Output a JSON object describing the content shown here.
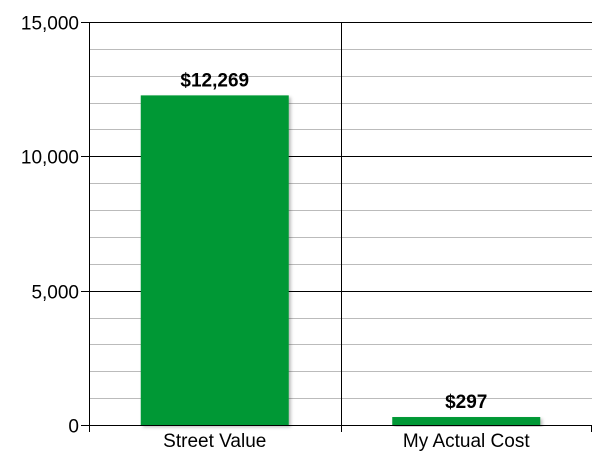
{
  "chart_data": {
    "type": "bar",
    "title": "",
    "xlabel": "",
    "ylabel": "",
    "categories": [
      "Street Value",
      "My Actual Cost"
    ],
    "values": [
      12269,
      297
    ],
    "data_labels": [
      "$12,269",
      "$297"
    ],
    "ylim": [
      0,
      15000
    ],
    "yticks": [
      0,
      5000,
      10000,
      15000
    ],
    "ytick_labels": [
      "0",
      "5,000",
      "10,000",
      "15,000"
    ],
    "minor_gridline_step": 1000,
    "grid": true,
    "legend": "none",
    "colors": {
      "bar": "#069835",
      "major_grid": "#000000",
      "minor_grid": "#bbbbbb",
      "axis": "#000000",
      "background": "#ffffff"
    }
  }
}
